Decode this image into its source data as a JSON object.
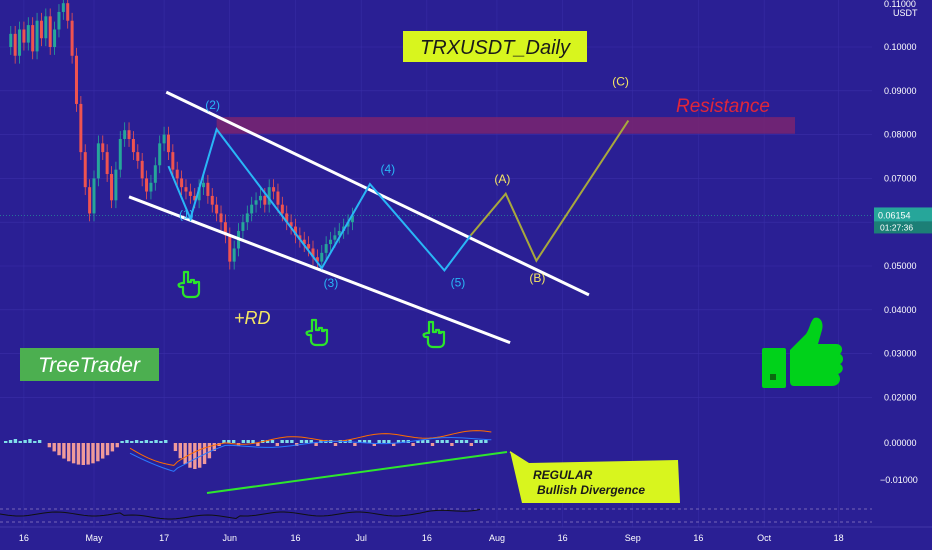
{
  "chart_data": {
    "type": "candlestick",
    "title": "TRXUSDT_Daily",
    "unit_label": "USDT",
    "y_ticks": [
      "0.10000",
      "0.09000",
      "0.08000",
      "0.07000",
      "0.06000",
      "0.05000",
      "0.04000",
      "0.03000",
      "0.02000"
    ],
    "ylim": [
      0.014,
      0.113
    ],
    "y_top_partial": "0.11000",
    "x_ticks": [
      {
        "label": "16",
        "day": -16
      },
      {
        "label": "May",
        "day": 0
      },
      {
        "label": "17",
        "day": 16
      },
      {
        "label": "Jun",
        "day": 31
      },
      {
        "label": "16",
        "day": 46
      },
      {
        "label": "Jul",
        "day": 61
      },
      {
        "label": "16",
        "day": 76
      },
      {
        "label": "Aug",
        "day": 92
      },
      {
        "label": "16",
        "day": 107
      },
      {
        "label": "Sep",
        "day": 123
      },
      {
        "label": "16",
        "day": 138
      },
      {
        "label": "Oct",
        "day": 153
      },
      {
        "label": "18",
        "day": 170
      }
    ],
    "current_price": "0.06154",
    "countdown": "01:27:36",
    "candles_close": [
      0.1,
      0.103,
      0.098,
      0.104,
      0.101,
      0.105,
      0.099,
      0.106,
      0.102,
      0.107,
      0.1,
      0.104,
      0.108,
      0.11,
      0.106,
      0.098,
      0.087,
      0.076,
      0.068,
      0.062,
      0.07,
      0.078,
      0.076,
      0.071,
      0.065,
      0.072,
      0.079,
      0.081,
      0.079,
      0.076,
      0.074,
      0.07,
      0.067,
      0.069,
      0.073,
      0.078,
      0.08,
      0.076,
      0.072,
      0.07,
      0.068,
      0.067,
      0.066,
      0.065,
      0.068,
      0.069,
      0.066,
      0.064,
      0.062,
      0.06,
      0.057,
      0.051,
      0.054,
      0.058,
      0.06,
      0.062,
      0.064,
      0.065,
      0.066,
      0.064,
      0.068,
      0.067,
      0.064,
      0.062,
      0.06,
      0.059,
      0.057,
      0.056,
      0.055,
      0.054,
      0.052,
      0.051,
      0.053,
      0.055,
      0.056,
      0.057,
      0.058,
      0.059,
      0.06,
      0.0615
    ],
    "wave_counts": [
      {
        "label": "(1)",
        "day": 22,
        "price": 0.0608
      },
      {
        "label": "(2)",
        "day": 28,
        "price": 0.0858
      },
      {
        "label": "(3)",
        "day": 55,
        "price": 0.0452
      },
      {
        "label": "(4)",
        "day": 68,
        "price": 0.0712
      },
      {
        "label": "(5)",
        "day": 84,
        "price": 0.0453
      }
    ],
    "projection_labels": [
      {
        "label": "(A)",
        "day": 93,
        "price": 0.069
      },
      {
        "label": "(B)",
        "day": 101,
        "price": 0.0463
      },
      {
        "label": "(C)",
        "day": 120,
        "price": 0.0912
      }
    ],
    "resistance_label": "Resistance",
    "rd_label": "+RD",
    "divergence_note": [
      "REGULAR",
      "Bullish Divergence"
    ],
    "macd_ticks": [
      "0.00000",
      "−0.01000"
    ]
  },
  "colors": {
    "background": "#2a1f94",
    "wave_line": "#29b6f6",
    "projection_line": "#a8a83c",
    "resistance_zone": "#7a2470",
    "candle_up": "#26a69a",
    "candle_down": "#ef5350",
    "highlight": "#d8f51e",
    "brand_green": "#4caf50",
    "thumb_green": "#00d21a",
    "price_badge": "#26a69a"
  },
  "brand": {
    "name": "TreeTrader"
  },
  "icons": {
    "pointer": "hand-pointing-up-icon",
    "thumbs_up": "thumbs-up-icon"
  }
}
